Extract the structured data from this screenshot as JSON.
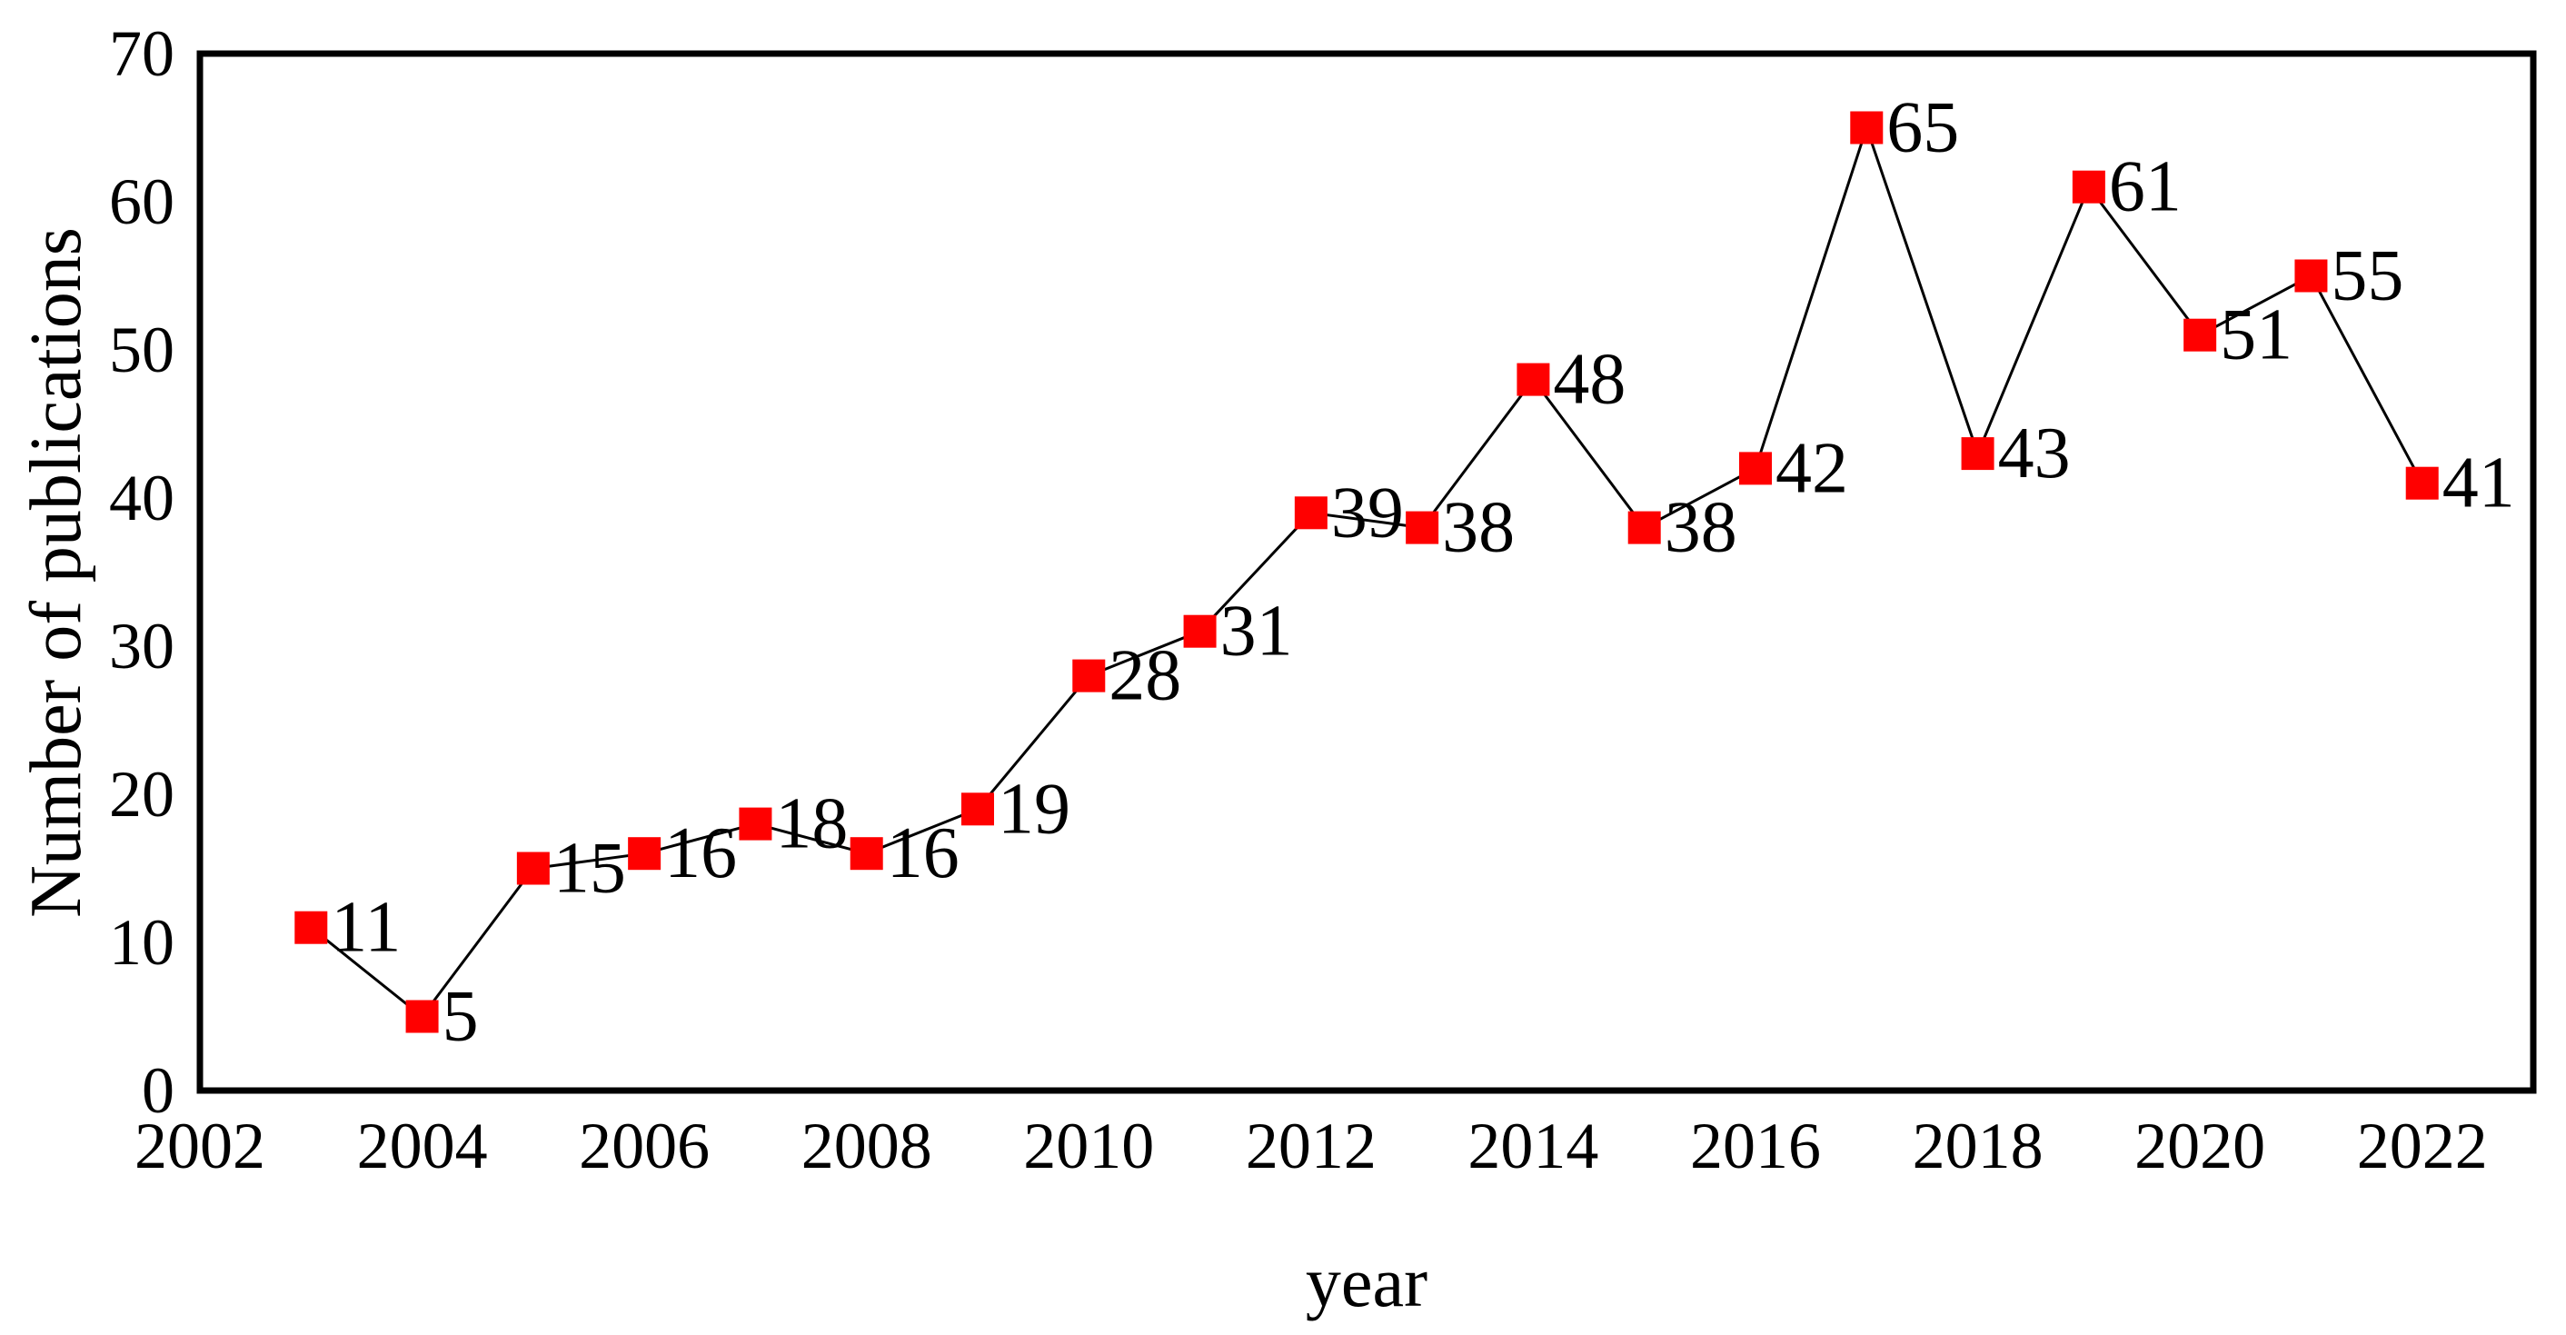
{
  "chart_data": {
    "type": "line",
    "title": "",
    "xlabel": "year",
    "ylabel": "Number of publications",
    "xlim": [
      2002,
      2023
    ],
    "ylim": [
      0,
      70
    ],
    "xticks": [
      2002,
      2004,
      2006,
      2008,
      2010,
      2012,
      2014,
      2016,
      2018,
      2020,
      2022
    ],
    "yticks": [
      0,
      10,
      20,
      30,
      40,
      50,
      60,
      70
    ],
    "grid": false,
    "legend_position": "none",
    "series": [
      {
        "name": "Number of publications",
        "marker": "square",
        "marker_color": "#FF0000",
        "line_color": "#000000",
        "x": [
          2003,
          2004,
          2005,
          2006,
          2007,
          2008,
          2009,
          2010,
          2011,
          2012,
          2013,
          2014,
          2015,
          2016,
          2017,
          2018,
          2019,
          2020,
          2021,
          2022
        ],
        "values": [
          11,
          5,
          15,
          16,
          18,
          16,
          19,
          28,
          31,
          39,
          38,
          48,
          38,
          42,
          65,
          43,
          61,
          51,
          55,
          41
        ],
        "point_labels": [
          "11",
          "5",
          "15",
          "16",
          "18",
          "16",
          "19",
          "28",
          "31",
          "39",
          "38",
          "48",
          "38",
          "42",
          "65",
          "43",
          "61",
          "51",
          "55",
          "41"
        ]
      }
    ],
    "colors": {
      "background": "#FFFFFF",
      "axis": "#000000",
      "text": "#000000",
      "marker": "#FF0000",
      "line": "#000000"
    }
  }
}
